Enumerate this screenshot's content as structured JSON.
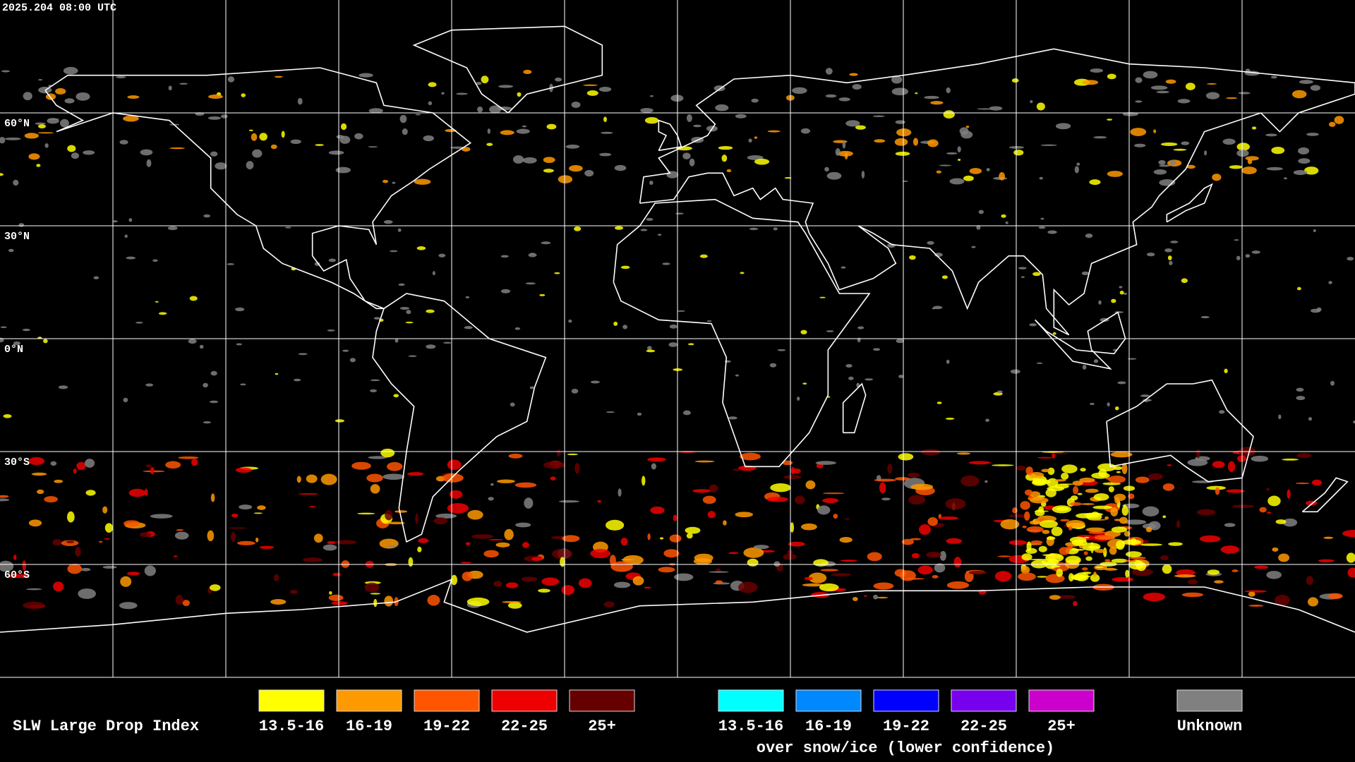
{
  "header": {
    "timestamp": "2025.204 08:00 UTC"
  },
  "latitude_labels": [
    "60°N",
    "30°N",
    "0°N",
    "30°S",
    "60°S"
  ],
  "legend": {
    "title": "SLW Large Drop Index",
    "items": [
      {
        "label": "13.5-16",
        "color": "#ffff00"
      },
      {
        "label": "16-19",
        "color": "#ff9900"
      },
      {
        "label": "19-22",
        "color": "#ff5500"
      },
      {
        "label": "22-25",
        "color": "#ee0000"
      },
      {
        "label": "25+",
        "color": "#660000"
      }
    ],
    "snow_items": [
      {
        "label": "13.5-16",
        "color": "#00ffff"
      },
      {
        "label": "16-19",
        "color": "#0088ff"
      },
      {
        "label": "19-22",
        "color": "#0000ff"
      },
      {
        "label": "22-25",
        "color": "#7700ee"
      },
      {
        "label": "25+",
        "color": "#cc00cc"
      }
    ],
    "snow_caption": "over snow/ice (lower confidence)",
    "unknown": {
      "label": "Unknown",
      "color": "#808080"
    }
  }
}
